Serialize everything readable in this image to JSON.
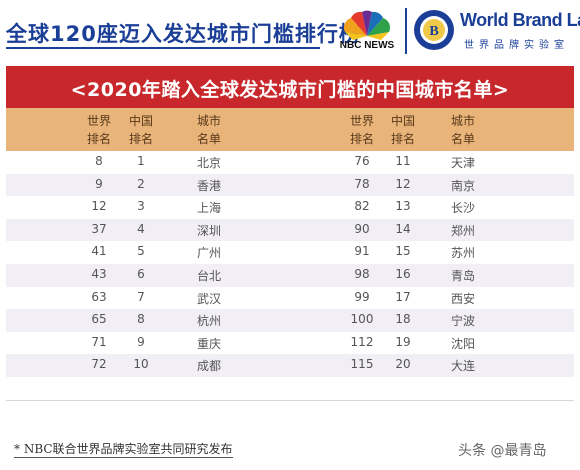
{
  "header": {
    "main_title": "全球120座迈入发达城市门槛排行榜",
    "nbc_label": "NBC NEWS",
    "brand_name": "World Brand Lab",
    "brand_sub": "世界品牌实验室"
  },
  "banner": {
    "title": "<2020年踏入全球发达城市门槛的中国城市名单>"
  },
  "columns": {
    "world_rank": [
      "世界",
      "排名"
    ],
    "china_rank": [
      "中国",
      "排名"
    ],
    "city": [
      "城市",
      "名单"
    ]
  },
  "rows": [
    {
      "w1": "8",
      "c1": "1",
      "n1": "北京",
      "w2": "76",
      "c2": "11",
      "n2": "天津"
    },
    {
      "w1": "9",
      "c1": "2",
      "n1": "香港",
      "w2": "78",
      "c2": "12",
      "n2": "南京"
    },
    {
      "w1": "12",
      "c1": "3",
      "n1": "上海",
      "w2": "82",
      "c2": "13",
      "n2": "长沙"
    },
    {
      "w1": "37",
      "c1": "4",
      "n1": "深圳",
      "w2": "90",
      "c2": "14",
      "n2": "郑州"
    },
    {
      "w1": "41",
      "c1": "5",
      "n1": "广州",
      "w2": "91",
      "c2": "15",
      "n2": "苏州"
    },
    {
      "w1": "43",
      "c1": "6",
      "n1": "台北",
      "w2": "98",
      "c2": "16",
      "n2": "青岛"
    },
    {
      "w1": "63",
      "c1": "7",
      "n1": "武汉",
      "w2": "99",
      "c2": "17",
      "n2": "西安"
    },
    {
      "w1": "65",
      "c1": "8",
      "n1": "杭州",
      "w2": "100",
      "c2": "18",
      "n2": "宁波"
    },
    {
      "w1": "71",
      "c1": "9",
      "n1": "重庆",
      "w2": "112",
      "c2": "19",
      "n2": "沈阳"
    },
    {
      "w1": "72",
      "c1": "10",
      "n1": "成都",
      "w2": "115",
      "c2": "20",
      "n2": "大连"
    }
  ],
  "footnote": "* NBC联合世界品牌实验室共同研究发布",
  "watermark": "头条 @最青岛",
  "colors": {
    "brand_blue": "#1b3f97",
    "banner_red": "#c8282c",
    "header_tan": "#e8b47a",
    "row_alt": "#f1eef5"
  },
  "icons": [
    "nbc-peacock-icon",
    "world-brand-lab-logo-icon"
  ]
}
